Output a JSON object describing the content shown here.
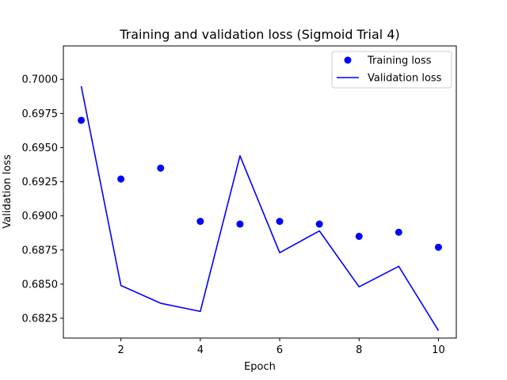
{
  "chart_data": {
    "type": "line",
    "title": "Training and validation loss (Sigmoid Trial 4)",
    "xlabel": "Epoch",
    "ylabel": "Validation loss",
    "x": [
      1,
      2,
      3,
      4,
      5,
      6,
      7,
      8,
      9,
      10
    ],
    "xlim": [
      0.55,
      10.45
    ],
    "ylim": [
      0.68105,
      0.70245
    ],
    "xticks": [
      2,
      4,
      6,
      8,
      10
    ],
    "yticks": [
      0.6825,
      0.685,
      0.6875,
      0.69,
      0.6925,
      0.695,
      0.6975,
      0.7
    ],
    "ytick_labels": [
      "0.6825",
      "0.6850",
      "0.6875",
      "0.6900",
      "0.6925",
      "0.6950",
      "0.6975",
      "0.7000"
    ],
    "grid": false,
    "legend_position": "top-right",
    "series": [
      {
        "name": "Training loss",
        "style": "markers",
        "color": "#0000ff",
        "values": [
          0.697,
          0.6927,
          0.6935,
          0.6896,
          0.6894,
          0.6896,
          0.6894,
          0.6885,
          0.6888,
          0.6877
        ]
      },
      {
        "name": "Validation loss",
        "style": "line",
        "color": "#0000ff",
        "values": [
          0.6995,
          0.6849,
          0.6836,
          0.683,
          0.6944,
          0.6873,
          0.6889,
          0.6848,
          0.6863,
          0.6816
        ]
      }
    ]
  }
}
